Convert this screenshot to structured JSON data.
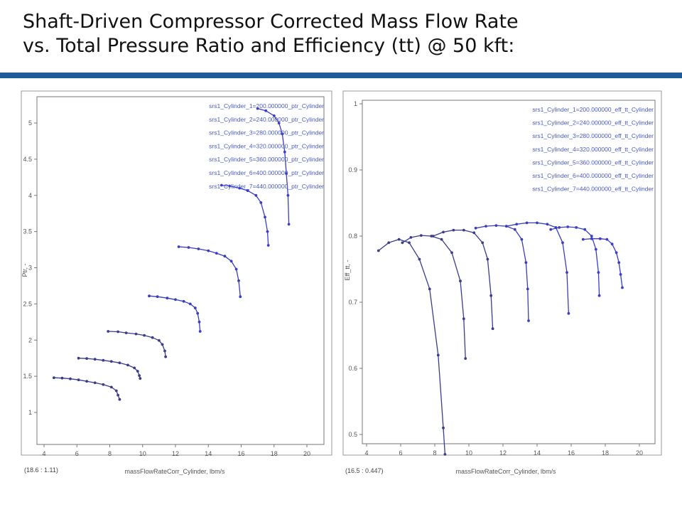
{
  "slide": {
    "title_line1": "Shaft-Driven Compressor Corrected Mass Flow Rate",
    "title_line2": "vs. Total Pressure Ratio and Efficiency (tt) @ 50 kft:",
    "rule_color": "#1f5a9a"
  },
  "chart_data": [
    {
      "type": "line",
      "xlabel": "massFlowRateCorr_Cylinder, lbm/s",
      "ylabel": "Ptr, -",
      "xlim": [
        3.5,
        21.0
      ],
      "ylim": [
        0.55,
        5.4
      ],
      "xticks": [
        4,
        6,
        8,
        10,
        12,
        14,
        16,
        18,
        20
      ],
      "yticks": [
        1,
        1.5,
        2,
        2.5,
        3,
        3.5,
        4,
        4.5,
        5
      ],
      "readout": "(18.6  :  1.11)",
      "legend_position": "top-right",
      "grid": false,
      "series": [
        {
          "name": "srs1_Cylinder_1=200.000000_ptr_Cylinder",
          "color": "#3a3d8c",
          "x": [
            4.6,
            5.1,
            5.6,
            6.1,
            6.6,
            7.1,
            7.6,
            8.1,
            8.4,
            8.5,
            8.6
          ],
          "y": [
            1.48,
            1.475,
            1.465,
            1.45,
            1.43,
            1.41,
            1.385,
            1.35,
            1.3,
            1.24,
            1.18
          ]
        },
        {
          "name": "srs1_Cylinder_2=240.000000_ptr_Cylinder",
          "color": "#3a3d8c",
          "x": [
            6.1,
            6.6,
            7.1,
            7.6,
            8.1,
            8.6,
            9.1,
            9.5,
            9.7,
            9.8,
            9.85
          ],
          "y": [
            1.75,
            1.745,
            1.735,
            1.72,
            1.705,
            1.685,
            1.655,
            1.615,
            1.57,
            1.51,
            1.47
          ]
        },
        {
          "name": "srs1_Cylinder_3=280.000000_ptr_Cylinder",
          "color": "#3a3d8c",
          "x": [
            7.9,
            8.5,
            9.0,
            9.6,
            10.1,
            10.6,
            11.0,
            11.2,
            11.35,
            11.4
          ],
          "y": [
            2.12,
            2.115,
            2.1,
            2.085,
            2.065,
            2.035,
            1.995,
            1.94,
            1.85,
            1.77
          ]
        },
        {
          "name": "srs1_Cylinder_4=320.000000_ptr_Cylinder",
          "color": "#3a3dbd",
          "x": [
            10.4,
            10.9,
            11.5,
            12.0,
            12.5,
            12.9,
            13.2,
            13.35,
            13.45,
            13.5
          ],
          "y": [
            2.61,
            2.6,
            2.58,
            2.56,
            2.535,
            2.5,
            2.445,
            2.37,
            2.25,
            2.12
          ]
        },
        {
          "name": "srs1_Cylinder_5=360.000000_ptr_Cylinder",
          "color": "#3a3dbd",
          "x": [
            12.2,
            12.8,
            13.4,
            14.0,
            14.5,
            15.0,
            15.4,
            15.7,
            15.85,
            15.95
          ],
          "y": [
            3.29,
            3.28,
            3.26,
            3.235,
            3.2,
            3.16,
            3.09,
            2.98,
            2.82,
            2.6
          ]
        },
        {
          "name": "srs1_Cylinder_6=400.000000_ptr_Cylinder",
          "color": "#3a3dcf",
          "x": [
            14.8,
            15.3,
            15.9,
            16.4,
            16.9,
            17.2,
            17.45,
            17.6,
            17.65
          ],
          "y": [
            4.14,
            4.13,
            4.1,
            4.065,
            4.0,
            3.9,
            3.7,
            3.5,
            3.31
          ]
        },
        {
          "name": "srs1_Cylinder_7=440.000000_ptr_Cylinder",
          "color": "#3a3dcf",
          "x": [
            17.0,
            17.5,
            18.0,
            18.3,
            18.5,
            18.65,
            18.75,
            18.85,
            18.9
          ],
          "y": [
            5.2,
            5.17,
            5.1,
            5.0,
            4.85,
            4.6,
            4.3,
            4.0,
            3.6
          ]
        }
      ]
    },
    {
      "type": "line",
      "xlabel": "massFlowRateCorr_Cylinder, lbm/s",
      "ylabel": "Eff_tt, -",
      "xlim": [
        3.5,
        21.5
      ],
      "ylim": [
        0.49,
        1.005
      ],
      "xticks": [
        4,
        6,
        8,
        10,
        12,
        14,
        16,
        18,
        20
      ],
      "yticks": [
        0.5,
        0.6,
        0.7,
        0.8,
        0.9,
        1
      ],
      "readout": "(16.5  :  0.447)",
      "legend_position": "top-right",
      "grid": false,
      "series": [
        {
          "name": "srs1_Cylinder_1=200.000000_eff_tt_Cylinder",
          "color": "#3a3d8c",
          "x": [
            4.7,
            5.3,
            5.9,
            6.5,
            7.1,
            7.7,
            8.2,
            8.5,
            8.6
          ],
          "y": [
            0.778,
            0.79,
            0.795,
            0.79,
            0.765,
            0.72,
            0.62,
            0.51,
            0.47
          ]
        },
        {
          "name": "srs1_Cylinder_2=240.000000_eff_tt_Cylinder",
          "color": "#3a3d8c",
          "x": [
            6.1,
            6.6,
            7.2,
            7.8,
            8.4,
            9.0,
            9.5,
            9.7,
            9.8
          ],
          "y": [
            0.79,
            0.798,
            0.801,
            0.8,
            0.795,
            0.775,
            0.732,
            0.675,
            0.615
          ]
        },
        {
          "name": "srs1_Cylinder_3=280.000000_eff_tt_Cylinder",
          "color": "#3a3d8c",
          "x": [
            7.9,
            8.5,
            9.1,
            9.7,
            10.3,
            10.8,
            11.1,
            11.3,
            11.4
          ],
          "y": [
            0.8,
            0.806,
            0.809,
            0.809,
            0.805,
            0.79,
            0.765,
            0.71,
            0.66
          ]
        },
        {
          "name": "srs1_Cylinder_4=320.000000_eff_tt_Cylinder",
          "color": "#3a3dbd",
          "x": [
            10.4,
            11.0,
            11.6,
            12.2,
            12.7,
            13.1,
            13.35,
            13.45,
            13.5
          ],
          "y": [
            0.812,
            0.815,
            0.816,
            0.815,
            0.81,
            0.795,
            0.76,
            0.72,
            0.672
          ]
        },
        {
          "name": "srs1_Cylinder_5=360.000000_eff_tt_Cylinder",
          "color": "#3a3dbd",
          "x": [
            12.2,
            12.8,
            13.4,
            14.0,
            14.6,
            15.1,
            15.5,
            15.75,
            15.85
          ],
          "y": [
            0.815,
            0.818,
            0.82,
            0.82,
            0.818,
            0.813,
            0.79,
            0.745,
            0.683
          ]
        },
        {
          "name": "srs1_Cylinder_6=400.000000_eff_tt_Cylinder",
          "color": "#3a3dcf",
          "x": [
            14.8,
            15.3,
            15.8,
            16.3,
            16.8,
            17.2,
            17.45,
            17.6,
            17.65
          ],
          "y": [
            0.81,
            0.813,
            0.814,
            0.813,
            0.81,
            0.8,
            0.78,
            0.745,
            0.71
          ]
        },
        {
          "name": "srs1_Cylinder_7=440.000000_eff_tt_Cylinder",
          "color": "#3a3dcf",
          "x": [
            16.7,
            17.2,
            17.7,
            18.1,
            18.4,
            18.65,
            18.8,
            18.9,
            19.0
          ],
          "y": [
            0.795,
            0.796,
            0.796,
            0.795,
            0.788,
            0.775,
            0.76,
            0.742,
            0.722
          ]
        }
      ]
    }
  ]
}
